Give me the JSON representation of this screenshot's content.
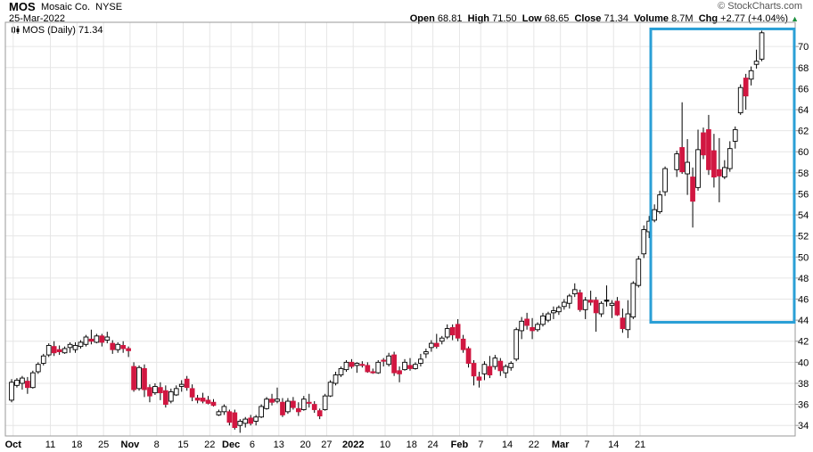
{
  "header": {
    "symbol": "MOS",
    "company": "Mosaic Co.",
    "exchange": "NYSE",
    "date": "25-Mar-2022",
    "brand": "© StockCharts.com",
    "quote": {
      "open_label": "Open",
      "open": "68.81",
      "high_label": "High",
      "high": "71.50",
      "low_label": "Low",
      "low": "68.65",
      "close_label": "Close",
      "close": "71.34",
      "volume_label": "Volume",
      "volume": "8.7M",
      "chg_label": "Chg",
      "chg": "+2.77 (+4.04%)",
      "chg_arrow": "▲"
    },
    "legend": "MOS (Daily) 71.34"
  },
  "colors": {
    "up": "#ffffff",
    "down": "#d11741",
    "flat": "#000000",
    "wick": "#000000",
    "grid": "#e6e6e6",
    "highlight": "#2a9fd6"
  },
  "chart_data": {
    "type": "candlestick",
    "title": "MOS (Daily) 71.34",
    "ylim": [
      33,
      72.3
    ],
    "y_ticks": [
      34,
      36,
      38,
      40,
      42,
      44,
      46,
      48,
      50,
      52,
      54,
      56,
      58,
      60,
      62,
      64,
      66,
      68,
      70
    ],
    "x_labels": [
      {
        "label": "Oct",
        "month": true
      },
      {
        "label": "11"
      },
      {
        "label": "18"
      },
      {
        "label": "25"
      },
      {
        "label": "Nov",
        "month": true
      },
      {
        "label": "8"
      },
      {
        "label": "15"
      },
      {
        "label": "22"
      },
      {
        "label": "Dec",
        "month": true
      },
      {
        "label": "6"
      },
      {
        "label": "13"
      },
      {
        "label": "20"
      },
      {
        "label": "27"
      },
      {
        "label": "2022",
        "month": true
      },
      {
        "label": "10"
      },
      {
        "label": "18"
      },
      {
        "label": "24"
      },
      {
        "label": "Feb",
        "month": true
      },
      {
        "label": "7"
      },
      {
        "label": "14"
      },
      {
        "label": "22"
      },
      {
        "label": "Mar",
        "month": true
      },
      {
        "label": "7"
      },
      {
        "label": "14"
      },
      {
        "label": "21"
      }
    ],
    "grid": true,
    "highlight_box": {
      "from_index": 124,
      "to_index": 142,
      "y_range": [
        43.8,
        71.5
      ]
    },
    "candles": [
      [
        36.4,
        38.4,
        36.2,
        38.1
      ],
      [
        37.8,
        38.5,
        37.6,
        38.3
      ],
      [
        38.0,
        38.7,
        37.4,
        38.5
      ],
      [
        38.2,
        38.6,
        37.0,
        37.6
      ],
      [
        37.6,
        39.2,
        37.5,
        39.0
      ],
      [
        39.1,
        40.0,
        38.9,
        39.8
      ],
      [
        39.9,
        40.8,
        39.7,
        40.6
      ],
      [
        40.7,
        41.8,
        40.5,
        41.6
      ],
      [
        41.5,
        42.0,
        40.6,
        40.9
      ],
      [
        41.2,
        41.6,
        40.7,
        41.0
      ],
      [
        40.9,
        41.5,
        40.8,
        41.3
      ],
      [
        41.4,
        41.9,
        40.9,
        41.7
      ],
      [
        41.2,
        41.9,
        40.9,
        41.6
      ],
      [
        41.5,
        42.1,
        41.3,
        41.9
      ],
      [
        41.7,
        42.6,
        41.5,
        42.4
      ],
      [
        42.2,
        43.1,
        41.7,
        42.0
      ],
      [
        41.9,
        42.7,
        41.8,
        42.5
      ],
      [
        42.5,
        42.7,
        41.5,
        41.9
      ],
      [
        42.1,
        42.9,
        41.8,
        42.4
      ],
      [
        41.8,
        42.1,
        40.8,
        41.2
      ],
      [
        41.2,
        41.9,
        40.9,
        41.7
      ],
      [
        41.6,
        42.0,
        40.9,
        41.3
      ],
      [
        41.3,
        41.5,
        40.5,
        41.1
      ],
      [
        39.6,
        40.0,
        37.2,
        37.4
      ],
      [
        37.5,
        39.7,
        37.3,
        39.5
      ],
      [
        39.4,
        39.8,
        36.7,
        37.4
      ],
      [
        37.6,
        37.9,
        36.2,
        36.8
      ],
      [
        37.1,
        38.0,
        36.9,
        37.7
      ],
      [
        37.6,
        38.1,
        36.4,
        37.1
      ],
      [
        37.3,
        37.8,
        35.7,
        36.0
      ],
      [
        36.3,
        37.5,
        36.1,
        37.2
      ],
      [
        36.9,
        37.8,
        36.8,
        37.5
      ],
      [
        37.7,
        38.3,
        37.2,
        37.9
      ],
      [
        38.4,
        38.7,
        37.3,
        37.6
      ],
      [
        37.5,
        37.9,
        36.3,
        36.7
      ],
      [
        36.6,
        36.9,
        36.1,
        36.4
      ],
      [
        36.6,
        37.1,
        36.1,
        36.3
      ],
      [
        36.4,
        36.8,
        36.0,
        36.1
      ],
      [
        36.2,
        36.5,
        35.8,
        35.9
      ],
      [
        35.0,
        35.5,
        34.9,
        35.3
      ],
      [
        35.3,
        36.0,
        35.0,
        35.8
      ],
      [
        35.3,
        35.5,
        34.0,
        34.3
      ],
      [
        35.2,
        35.5,
        33.6,
        33.8
      ],
      [
        34.0,
        34.6,
        33.3,
        34.4
      ],
      [
        34.2,
        34.8,
        33.8,
        34.6
      ],
      [
        34.7,
        35.0,
        34.0,
        34.2
      ],
      [
        34.4,
        35.0,
        34.0,
        34.8
      ],
      [
        34.8,
        36.0,
        34.7,
        35.8
      ],
      [
        35.6,
        36.7,
        35.5,
        36.5
      ],
      [
        36.5,
        37.0,
        35.9,
        36.2
      ],
      [
        36.3,
        37.6,
        36.1,
        36.5
      ],
      [
        36.2,
        36.6,
        34.8,
        35.0
      ],
      [
        35.3,
        36.6,
        35.1,
        36.3
      ],
      [
        36.3,
        36.7,
        35.5,
        35.7
      ],
      [
        35.6,
        36.2,
        34.9,
        35.3
      ],
      [
        35.5,
        36.8,
        35.4,
        36.5
      ],
      [
        36.2,
        37.0,
        35.7,
        36.1
      ],
      [
        36.0,
        36.3,
        35.2,
        35.5
      ],
      [
        35.4,
        35.6,
        34.6,
        34.9
      ],
      [
        35.5,
        37.0,
        35.4,
        36.8
      ],
      [
        36.8,
        38.3,
        36.7,
        38.1
      ],
      [
        38.0,
        39.1,
        37.8,
        38.8
      ],
      [
        38.8,
        39.6,
        38.6,
        39.4
      ],
      [
        39.3,
        40.2,
        39.1,
        40.0
      ],
      [
        40.0,
        40.3,
        39.4,
        39.6
      ],
      [
        39.7,
        40.0,
        39.0,
        39.9
      ],
      [
        39.8,
        40.1,
        39.5,
        39.7
      ],
      [
        39.7,
        40.0,
        39.0,
        39.1
      ],
      [
        39.1,
        39.4,
        38.9,
        39.0
      ],
      [
        39.0,
        40.2,
        38.9,
        40.0
      ],
      [
        40.2,
        40.4,
        39.6,
        40.1
      ],
      [
        39.8,
        40.9,
        39.6,
        40.6
      ],
      [
        40.7,
        41.0,
        38.7,
        39.0
      ],
      [
        39.2,
        39.6,
        38.1,
        38.9
      ],
      [
        39.3,
        40.3,
        39.2,
        40.0
      ],
      [
        39.7,
        40.4,
        39.2,
        39.4
      ],
      [
        39.4,
        40.0,
        39.3,
        39.8
      ],
      [
        39.9,
        40.8,
        39.6,
        40.3
      ],
      [
        40.8,
        41.3,
        40.4,
        41.0
      ],
      [
        41.4,
        42.1,
        41.0,
        41.8
      ],
      [
        41.8,
        42.7,
        41.3,
        41.5
      ],
      [
        42.0,
        42.5,
        41.7,
        42.3
      ],
      [
        42.4,
        43.6,
        42.2,
        43.2
      ],
      [
        43.3,
        43.6,
        42.1,
        42.6
      ],
      [
        43.6,
        44.1,
        42.0,
        42.3
      ],
      [
        42.2,
        42.6,
        40.9,
        41.2
      ],
      [
        41.3,
        41.5,
        39.5,
        39.9
      ],
      [
        39.9,
        40.2,
        37.8,
        38.7
      ],
      [
        38.6,
        39.1,
        37.6,
        38.3
      ],
      [
        38.9,
        40.1,
        38.3,
        39.8
      ],
      [
        39.6,
        40.6,
        38.5,
        38.8
      ],
      [
        39.6,
        40.7,
        39.3,
        40.4
      ],
      [
        40.1,
        40.4,
        38.7,
        39.2
      ],
      [
        39.0,
        39.8,
        38.5,
        39.6
      ],
      [
        39.5,
        40.1,
        39.2,
        39.9
      ],
      [
        40.3,
        43.3,
        40.1,
        43.1
      ],
      [
        43.0,
        44.3,
        42.2,
        43.9
      ],
      [
        44.1,
        44.7,
        43.1,
        43.5
      ],
      [
        43.3,
        44.2,
        42.2,
        43.0
      ],
      [
        43.1,
        43.8,
        42.9,
        43.6
      ],
      [
        43.6,
        44.7,
        43.4,
        44.4
      ],
      [
        44.0,
        44.8,
        43.8,
        44.6
      ],
      [
        44.7,
        45.3,
        44.1,
        44.9
      ],
      [
        44.8,
        45.4,
        44.5,
        45.2
      ],
      [
        45.3,
        46.0,
        45.0,
        45.7
      ],
      [
        45.6,
        46.5,
        45.1,
        46.3
      ],
      [
        46.5,
        47.5,
        46.2,
        46.9
      ],
      [
        46.6,
        46.9,
        44.8,
        45.0
      ],
      [
        45.0,
        46.2,
        44.1,
        45.9
      ],
      [
        45.9,
        46.8,
        45.4,
        45.7
      ],
      [
        45.9,
        46.2,
        42.9,
        44.7
      ],
      [
        44.6,
        45.8,
        44.3,
        45.6
      ],
      [
        45.9,
        47.3,
        45.3,
        45.9
      ],
      [
        45.4,
        45.9,
        44.2,
        45.6
      ],
      [
        45.8,
        46.2,
        44.4,
        44.5
      ],
      [
        44.2,
        45.1,
        42.8,
        43.2
      ],
      [
        43.1,
        45.9,
        42.3,
        44.6
      ],
      [
        44.3,
        47.7,
        44.1,
        47.5
      ],
      [
        47.3,
        50.1,
        47.1,
        49.8
      ],
      [
        50.3,
        53.0,
        49.9,
        52.6
      ],
      [
        52.4,
        53.9,
        51.8,
        53.4
      ],
      [
        53.5,
        55.0,
        53.3,
        54.5
      ],
      [
        54.3,
        56.3,
        54.1,
        55.9
      ],
      [
        56.2,
        58.6,
        55.8,
        58.4
      ],
      [
        58.3,
        60.1,
        57.6,
        59.8
      ],
      [
        60.4,
        64.7,
        57.9,
        58.1
      ],
      [
        57.9,
        61.2,
        55.9,
        59.0
      ],
      [
        57.6,
        58.5,
        52.8,
        55.3
      ],
      [
        56.6,
        62.1,
        56.3,
        60.2
      ],
      [
        61.8,
        62.3,
        59.3,
        59.7
      ],
      [
        62.1,
        63.5,
        57.8,
        58.3
      ],
      [
        60.1,
        61.7,
        56.6,
        57.6
      ],
      [
        58.3,
        61.3,
        55.2,
        57.7
      ],
      [
        57.6,
        59.2,
        57.4,
        58.5
      ],
      [
        58.4,
        61.0,
        58.1,
        60.3
      ],
      [
        61.0,
        62.4,
        60.3,
        62.1
      ],
      [
        63.7,
        66.4,
        63.5,
        66.1
      ],
      [
        67.0,
        67.4,
        64.0,
        65.3
      ],
      [
        66.9,
        68.1,
        66.3,
        67.7
      ],
      [
        68.3,
        69.7,
        67.9,
        68.6
      ],
      [
        68.8,
        71.5,
        68.6,
        71.3
      ]
    ]
  }
}
